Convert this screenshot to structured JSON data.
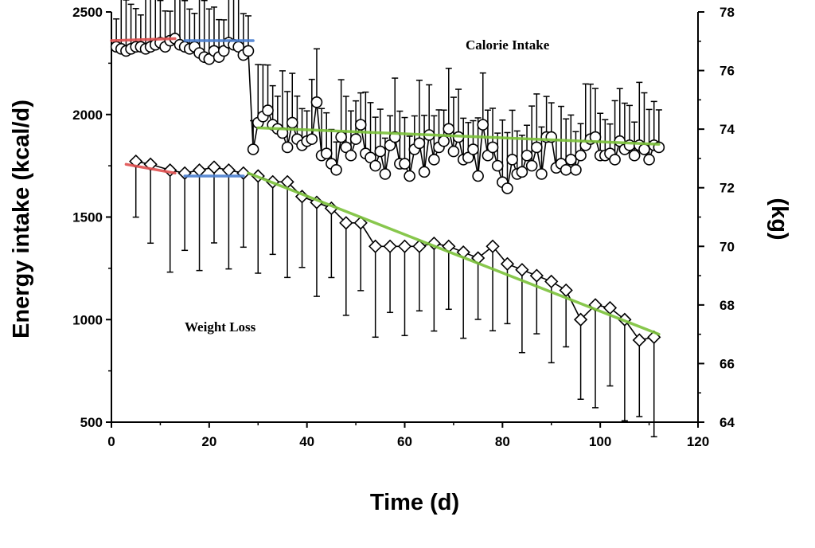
{
  "chart_data": {
    "type": "line",
    "xlabel": "Time (d)",
    "ylabel_left": "Energy intake (kcal/d)",
    "ylabel_right": "(kg)",
    "xlim": [
      0,
      120
    ],
    "ylim_left": [
      500,
      2500
    ],
    "ylim_right": [
      64,
      78
    ],
    "x_ticks": [
      "0",
      "20",
      "40",
      "60",
      "80",
      "100",
      "120"
    ],
    "y_ticks_left": [
      "500",
      "1000",
      "1500",
      "2000",
      "2500"
    ],
    "y_ticks_right": [
      "64",
      "66",
      "68",
      "70",
      "72",
      "74",
      "76",
      "78"
    ],
    "grid": false,
    "annotations": [
      "Calorie Intake",
      "Weight Loss"
    ],
    "colors": {
      "phase1_trend": "#e05050",
      "phase2_trend": "#4a7fd0",
      "phase3_trend": "#7cc23a",
      "data": "#000000"
    },
    "series": [
      {
        "name": "Calorie Intake",
        "axis": "left",
        "marker": "circle",
        "x": [
          1,
          2,
          3,
          4,
          5,
          6,
          7,
          8,
          9,
          10,
          11,
          12,
          13,
          14,
          15,
          16,
          17,
          18,
          19,
          20,
          21,
          22,
          23,
          24,
          25,
          26,
          27,
          28,
          29,
          30,
          31,
          32,
          33,
          34,
          35,
          36,
          37,
          38,
          39,
          40,
          41,
          42,
          43,
          44,
          45,
          46,
          47,
          48,
          49,
          50,
          51,
          52,
          53,
          54,
          55,
          56,
          57,
          58,
          59,
          60,
          61,
          62,
          63,
          64,
          65,
          66,
          67,
          68,
          69,
          70,
          71,
          72,
          73,
          74,
          75,
          76,
          77,
          78,
          79,
          80,
          81,
          82,
          83,
          84,
          85,
          86,
          87,
          88,
          89,
          90,
          91,
          92,
          93,
          94,
          95,
          96,
          97,
          98,
          99,
          100,
          101,
          102,
          103,
          104,
          105,
          106,
          107,
          108,
          109,
          110,
          111,
          112
        ],
        "y": [
          2330,
          2320,
          2310,
          2320,
          2330,
          2330,
          2320,
          2330,
          2340,
          2350,
          2330,
          2360,
          2370,
          2340,
          2330,
          2320,
          2330,
          2300,
          2280,
          2270,
          2310,
          2280,
          2310,
          2350,
          2340,
          2330,
          2290,
          2310,
          1830,
          1960,
          1990,
          2020,
          1950,
          1930,
          1910,
          1840,
          1960,
          1880,
          1850,
          1870,
          1880,
          2060,
          1800,
          1810,
          1760,
          1730,
          1890,
          1840,
          1800,
          1880,
          1950,
          1810,
          1790,
          1750,
          1820,
          1710,
          1850,
          1890,
          1760,
          1760,
          1700,
          1830,
          1860,
          1720,
          1900,
          1780,
          1840,
          1870,
          1930,
          1820,
          1890,
          1780,
          1790,
          1830,
          1700,
          1950,
          1800,
          1840,
          1750,
          1670,
          1640,
          1780,
          1710,
          1720,
          1800,
          1750,
          1840,
          1710,
          1890,
          1890,
          1740,
          1760,
          1730,
          1780,
          1730,
          1800,
          1850,
          1880,
          1890,
          1800,
          1800,
          1810,
          1780,
          1870,
          1830,
          1850,
          1800,
          1850,
          1830,
          1780,
          1850,
          1840
        ]
      },
      {
        "name": "Weight Loss",
        "axis": "right",
        "marker": "diamond",
        "x": [
          5,
          8,
          12,
          15,
          18,
          21,
          24,
          27,
          30,
          33,
          36,
          39,
          42,
          45,
          48,
          51,
          54,
          57,
          60,
          63,
          66,
          69,
          72,
          75,
          78,
          81,
          84,
          87,
          90,
          93,
          96,
          99,
          102,
          105,
          108,
          111
        ],
        "y": [
          72.9,
          72.8,
          72.6,
          72.5,
          72.6,
          72.7,
          72.6,
          72.5,
          72.4,
          72.2,
          72.2,
          71.7,
          71.5,
          71.3,
          70.8,
          70.8,
          70.0,
          70.0,
          70.0,
          70.0,
          70.1,
          70.0,
          69.8,
          69.6,
          70.0,
          69.4,
          69.2,
          69.0,
          68.8,
          68.5,
          67.5,
          68.0,
          67.9,
          67.5,
          66.8,
          66.9
        ]
      }
    ],
    "trend_lines": [
      {
        "axis": "left",
        "color": "#e05050",
        "x": [
          0,
          13
        ],
        "y": [
          2360,
          2370
        ]
      },
      {
        "axis": "left",
        "color": "#4a7fd0",
        "x": [
          15,
          29
        ],
        "y": [
          2360,
          2360
        ]
      },
      {
        "axis": "left",
        "color": "#7cc23a",
        "x": [
          30,
          112
        ],
        "y": [
          1935,
          1855
        ]
      },
      {
        "axis": "right",
        "color": "#e05050",
        "x": [
          3,
          13
        ],
        "y": [
          72.8,
          72.5
        ]
      },
      {
        "axis": "right",
        "color": "#4a7fd0",
        "x": [
          15,
          27
        ],
        "y": [
          72.4,
          72.4
        ]
      },
      {
        "axis": "right",
        "color": "#7cc23a",
        "x": [
          28,
          112
        ],
        "y": [
          72.5,
          67.0
        ]
      }
    ]
  }
}
